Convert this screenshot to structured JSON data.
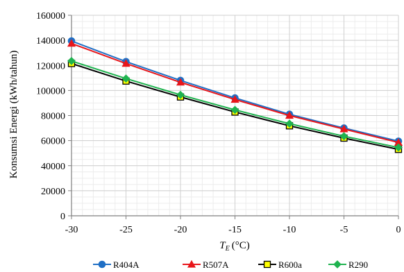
{
  "chart_data": {
    "type": "line",
    "title": "",
    "xlabel": "(°C)",
    "xlabel_symbol": "T",
    "xlabel_subscript": "E",
    "ylabel": "Konsumsi Energi (kWh/tahun)",
    "x": [
      -30,
      -25,
      -20,
      -15,
      -10,
      -5,
      0
    ],
    "xlim": [
      -30,
      0
    ],
    "ylim": [
      0,
      160000
    ],
    "xticks": [
      -30,
      -25,
      -20,
      -15,
      -10,
      -5,
      0
    ],
    "yticks": [
      0,
      20000,
      40000,
      60000,
      80000,
      100000,
      120000,
      140000,
      160000
    ],
    "grid": true,
    "legend_position": "bottom",
    "series": [
      {
        "name": "R404A",
        "color": "#1f6fc5",
        "marker": "circle",
        "values": [
          139500,
          123000,
          108000,
          94000,
          81000,
          70000,
          59500
        ]
      },
      {
        "name": "R507A",
        "color": "#e8161b",
        "marker": "triangle",
        "values": [
          137500,
          121500,
          106500,
          92800,
          80000,
          69200,
          58500
        ]
      },
      {
        "name": "R600a",
        "color": "#000000",
        "fill": "#ffff00",
        "marker": "square",
        "values": [
          121500,
          107500,
          94800,
          82800,
          71800,
          62000,
          53000
        ]
      },
      {
        "name": "R290",
        "color": "#1fb34f",
        "marker": "diamond",
        "values": [
          123500,
          109500,
          96500,
          84500,
          73500,
          63500,
          54500
        ]
      }
    ]
  }
}
